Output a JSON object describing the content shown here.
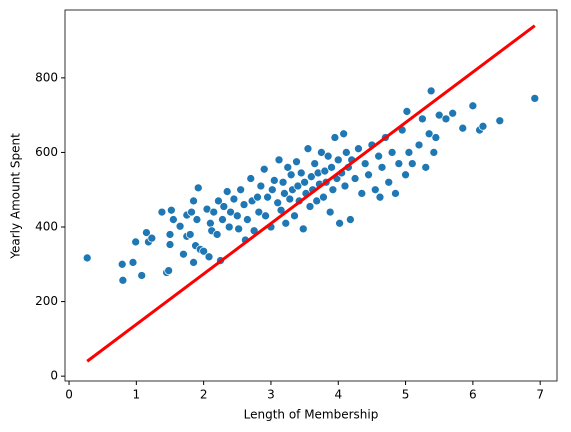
{
  "chart_data": {
    "type": "scatter",
    "xlabel": "Length of Membership",
    "ylabel": "Yearly Amount Spent",
    "xlim": [
      -0.06,
      7.25
    ],
    "ylim": [
      -13,
      982
    ],
    "xticks": [
      0,
      1,
      2,
      3,
      4,
      5,
      6,
      7
    ],
    "yticks": [
      0,
      200,
      400,
      600,
      800
    ],
    "series": [
      {
        "type": "scatter",
        "color": "#1f77b4",
        "x": [
          0.27,
          0.79,
          0.8,
          0.95,
          0.99,
          1.08,
          1.15,
          1.18,
          1.23,
          1.38,
          1.45,
          1.48,
          1.5,
          1.5,
          1.52,
          1.55,
          1.65,
          1.7,
          1.75,
          1.75,
          1.8,
          1.82,
          1.85,
          1.85,
          1.88,
          1.9,
          1.92,
          1.95,
          2.0,
          2.05,
          2.08,
          2.1,
          2.12,
          2.15,
          2.2,
          2.22,
          2.25,
          2.28,
          2.3,
          2.35,
          2.38,
          2.4,
          2.45,
          2.5,
          2.52,
          2.55,
          2.6,
          2.62,
          2.65,
          2.7,
          2.72,
          2.75,
          2.8,
          2.82,
          2.85,
          2.9,
          2.92,
          2.95,
          3.0,
          3.02,
          3.05,
          3.1,
          3.12,
          3.15,
          3.18,
          3.2,
          3.22,
          3.25,
          3.28,
          3.3,
          3.32,
          3.35,
          3.38,
          3.4,
          3.42,
          3.45,
          3.48,
          3.5,
          3.52,
          3.55,
          3.58,
          3.6,
          3.62,
          3.65,
          3.68,
          3.7,
          3.72,
          3.75,
          3.78,
          3.8,
          3.82,
          3.85,
          3.88,
          3.9,
          3.92,
          3.95,
          3.98,
          4.0,
          4.02,
          4.05,
          4.08,
          4.1,
          4.12,
          4.15,
          4.18,
          4.2,
          4.25,
          4.3,
          4.35,
          4.4,
          4.45,
          4.5,
          4.55,
          4.6,
          4.62,
          4.65,
          4.7,
          4.75,
          4.8,
          4.85,
          4.9,
          4.95,
          5.0,
          5.02,
          5.05,
          5.1,
          5.2,
          5.25,
          5.3,
          5.35,
          5.38,
          5.42,
          5.45,
          5.5,
          5.6,
          5.7,
          5.85,
          6.0,
          6.1,
          6.15,
          6.4,
          6.92
        ],
        "values": [
          317,
          300,
          257,
          305,
          360,
          270,
          385,
          360,
          370,
          440,
          278,
          283,
          353,
          380,
          445,
          420,
          402,
          327,
          375,
          432,
          380,
          440,
          470,
          305,
          350,
          420,
          505,
          340,
          335,
          448,
          320,
          410,
          390,
          440,
          380,
          470,
          310,
          420,
          455,
          495,
          400,
          440,
          475,
          430,
          395,
          500,
          460,
          365,
          420,
          530,
          470,
          390,
          480,
          440,
          510,
          555,
          430,
          480,
          400,
          500,
          525,
          465,
          580,
          445,
          520,
          490,
          410,
          560,
          475,
          540,
          500,
          430,
          575,
          510,
          470,
          545,
          395,
          520,
          490,
          610,
          455,
          535,
          500,
          570,
          470,
          545,
          515,
          600,
          480,
          550,
          520,
          590,
          440,
          560,
          500,
          640,
          530,
          580,
          410,
          545,
          650,
          510,
          600,
          560,
          420,
          580,
          530,
          610,
          490,
          570,
          540,
          620,
          500,
          590,
          480,
          560,
          640,
          520,
          600,
          490,
          570,
          660,
          540,
          710,
          600,
          570,
          620,
          690,
          560,
          650,
          765,
          600,
          640,
          700,
          690,
          705,
          665,
          725,
          660,
          670,
          685,
          745
        ]
      },
      {
        "type": "line",
        "color": "#ff0000",
        "x": [
          0.27,
          6.92
        ],
        "values": [
          40,
          940
        ]
      }
    ]
  }
}
